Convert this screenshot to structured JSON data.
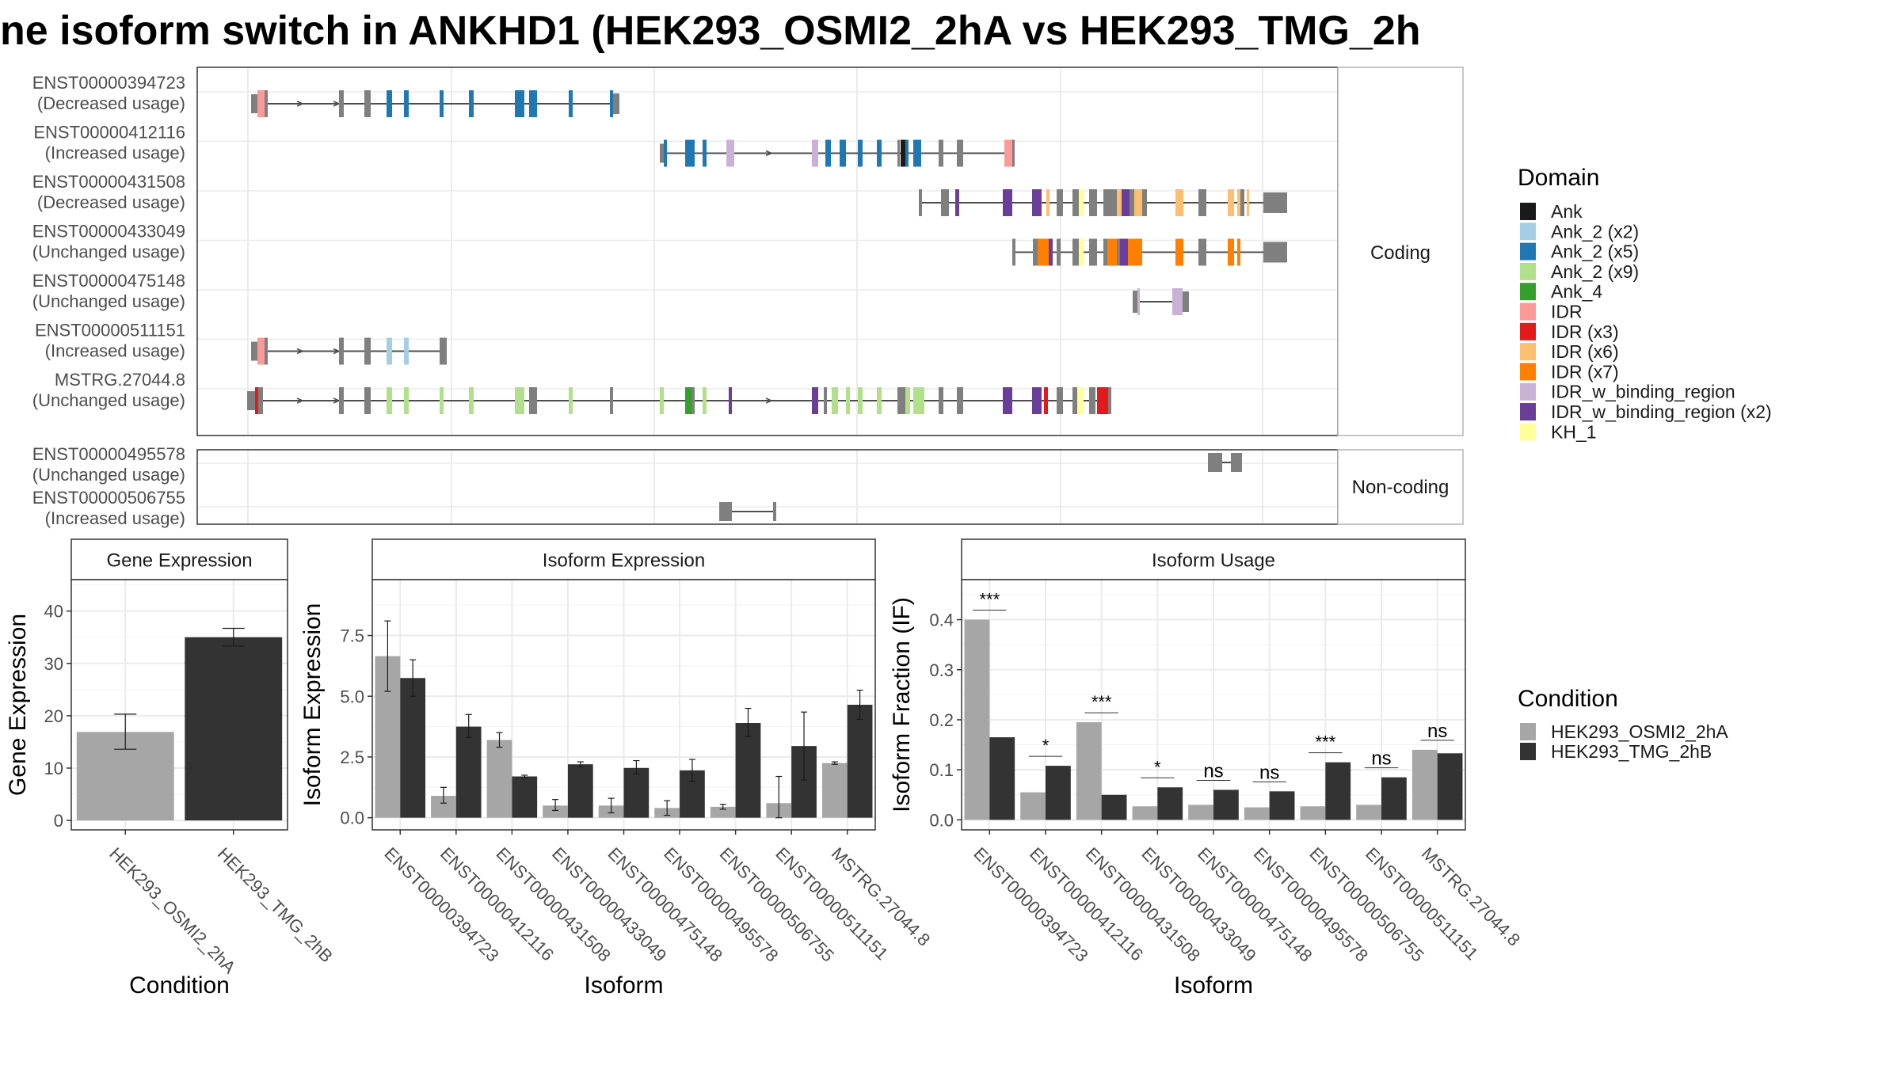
{
  "title": "ne isoform switch in ANKHD1 (HEK293_OSMI2_2hA vs HEK293_TMG_2h",
  "structure_panel": {
    "coding_label": "Coding",
    "noncoding_label": "Non-coding",
    "coding_rows": [
      {
        "id": "ENST00000394723",
        "usage": "(Decreased usage)"
      },
      {
        "id": "ENST00000412116",
        "usage": "(Increased usage)"
      },
      {
        "id": "ENST00000431508",
        "usage": "(Decreased usage)"
      },
      {
        "id": "ENST00000433049",
        "usage": "(Unchanged usage)"
      },
      {
        "id": "ENST00000475148",
        "usage": "(Unchanged usage)"
      },
      {
        "id": "ENST00000511151",
        "usage": "(Increased usage)"
      },
      {
        "id": "MSTRG.27044.8",
        "usage": "(Unchanged usage)"
      }
    ],
    "noncoding_rows": [
      {
        "id": "ENST00000495578",
        "usage": "(Unchanged usage)"
      },
      {
        "id": "ENST00000506755",
        "usage": "(Increased usage)"
      }
    ]
  },
  "domain_legend": {
    "title": "Domain",
    "items": [
      {
        "label": "Ank",
        "color": "#1a1a1a"
      },
      {
        "label": "Ank_2 (x2)",
        "color": "#a6cee3"
      },
      {
        "label": "Ank_2 (x5)",
        "color": "#1f78b4"
      },
      {
        "label": "Ank_2 (x9)",
        "color": "#b2df8a"
      },
      {
        "label": "Ank_4",
        "color": "#33a02c"
      },
      {
        "label": "IDR",
        "color": "#fb9a99"
      },
      {
        "label": "IDR (x3)",
        "color": "#e31a1c"
      },
      {
        "label": "IDR (x6)",
        "color": "#fdbf6f"
      },
      {
        "label": "IDR (x7)",
        "color": "#ff7f00"
      },
      {
        "label": "IDR_w_binding_region",
        "color": "#cab2d6"
      },
      {
        "label": "IDR_w_binding_region (x2)",
        "color": "#6a3d9a"
      },
      {
        "label": "KH_1",
        "color": "#ffff99"
      }
    ]
  },
  "condition_legend": {
    "title": "Condition",
    "items": [
      {
        "label": "HEK293_OSMI2_2hA",
        "color": "#a6a6a6"
      },
      {
        "label": "HEK293_TMG_2hB",
        "color": "#333333"
      }
    ]
  },
  "chart_data": [
    {
      "type": "bar",
      "title": "Gene Expression",
      "xlabel": "Condition",
      "ylabel": "Gene Expression",
      "categories": [
        "HEK293_OSMI2_2hA",
        "HEK293_TMG_2hB"
      ],
      "values": [
        16.9,
        35.0
      ],
      "errors_low": [
        13.6,
        33.3
      ],
      "errors_high": [
        20.3,
        36.7
      ],
      "ylim": [
        -1.8,
        46
      ],
      "yticks": [
        0,
        10,
        20,
        30,
        40
      ],
      "grid": true
    },
    {
      "type": "bar",
      "title": "Isoform Expression",
      "xlabel": "Isoform",
      "ylabel": "Isoform Expression",
      "categories": [
        "ENST00000394723",
        "ENST00000412116",
        "ENST00000431508",
        "ENST00000433049",
        "ENST00000475148",
        "ENST00000495578",
        "ENST00000506755",
        "ENST00000511151",
        "MSTRG.27044.8"
      ],
      "series": [
        {
          "name": "HEK293_OSMI2_2hA",
          "values": [
            6.65,
            0.9,
            3.2,
            0.5,
            0.5,
            0.4,
            0.45,
            0.6,
            2.25
          ],
          "low": [
            5.2,
            0.6,
            2.9,
            0.3,
            0.2,
            0.1,
            0.35,
            0.0,
            2.2
          ],
          "high": [
            8.1,
            1.25,
            3.5,
            0.75,
            0.8,
            0.7,
            0.55,
            1.7,
            2.3
          ]
        },
        {
          "name": "HEK293_TMG_2hB",
          "values": [
            5.75,
            3.75,
            1.7,
            2.2,
            2.05,
            1.95,
            3.9,
            2.95,
            4.65
          ],
          "low": [
            5.0,
            3.3,
            1.65,
            2.1,
            1.8,
            1.5,
            3.35,
            1.55,
            4.05
          ],
          "high": [
            6.5,
            4.25,
            1.75,
            2.3,
            2.35,
            2.4,
            4.5,
            4.35,
            5.25
          ]
        }
      ],
      "ylim": [
        -0.5,
        9.8
      ],
      "yticks": [
        0.0,
        2.5,
        5.0,
        7.5
      ],
      "grid": true
    },
    {
      "type": "bar",
      "title": "Isoform Usage",
      "xlabel": "Isoform",
      "ylabel": "Isoform Fraction (IF)",
      "categories": [
        "ENST00000394723",
        "ENST00000412116",
        "ENST00000431508",
        "ENST00000433049",
        "ENST00000475148",
        "ENST00000495578",
        "ENST00000506755",
        "ENST00000511151",
        "MSTRG.27044.8"
      ],
      "series": [
        {
          "name": "HEK293_OSMI2_2hA",
          "values": [
            0.4,
            0.055,
            0.195,
            0.027,
            0.03,
            0.025,
            0.027,
            0.03,
            0.14
          ]
        },
        {
          "name": "HEK293_TMG_2hB",
          "values": [
            0.165,
            0.108,
            0.05,
            0.065,
            0.06,
            0.057,
            0.115,
            0.085,
            0.133
          ]
        }
      ],
      "significance": [
        "***",
        "*",
        "***",
        "*",
        "ns",
        "ns",
        "***",
        "ns",
        "ns"
      ],
      "ylim": [
        -0.02,
        0.48
      ],
      "yticks": [
        0.0,
        0.1,
        0.2,
        0.3,
        0.4
      ],
      "grid": true
    }
  ]
}
